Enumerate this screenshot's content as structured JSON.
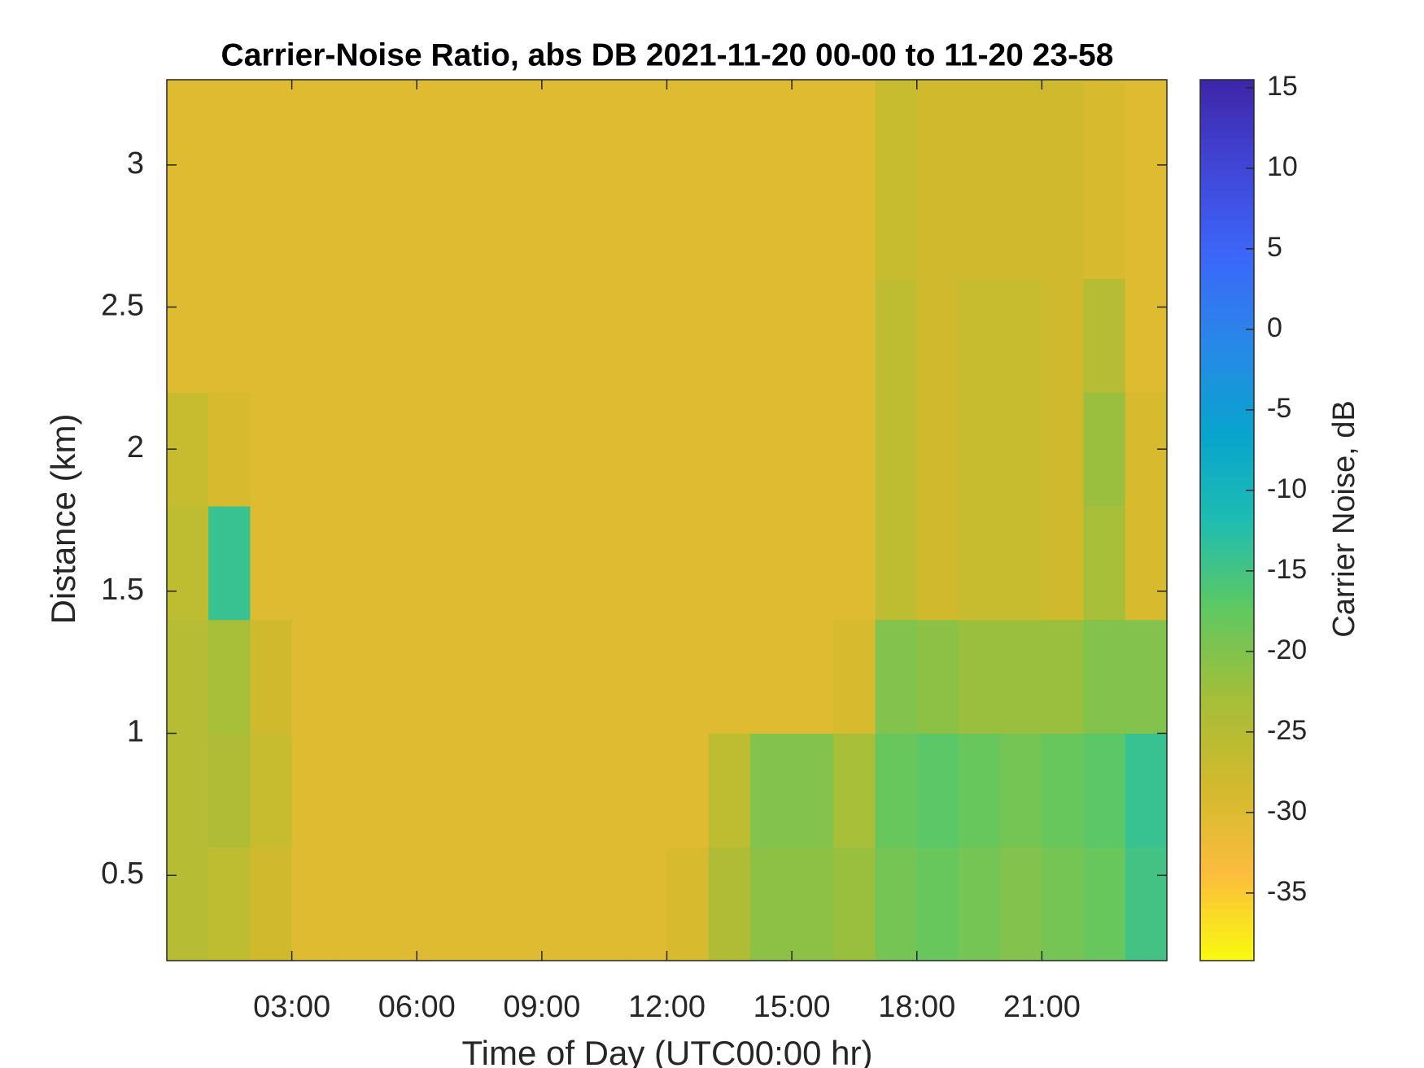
{
  "chart_data": {
    "type": "heatmap",
    "title": "Carrier-Noise Ratio, abs DB 2021-11-20 00-00 to 11-20 23-58",
    "x_label": "Time of Day (UTC00:00 hr)",
    "y_label": "Distance (km)",
    "colorbar_label": "Carrier Noise, dB",
    "xlim": [
      0,
      24
    ],
    "ylim": [
      0.2,
      3.3
    ],
    "clim": [
      -39.2,
      15.5
    ],
    "xticks": [
      {
        "value": 3,
        "label": "03:00"
      },
      {
        "value": 6,
        "label": "06:00"
      },
      {
        "value": 9,
        "label": "09:00"
      },
      {
        "value": 12,
        "label": "12:00"
      },
      {
        "value": 15,
        "label": "15:00"
      },
      {
        "value": 18,
        "label": "18:00"
      },
      {
        "value": 21,
        "label": "21:00"
      }
    ],
    "yticks": [
      0.5,
      1,
      1.5,
      2,
      2.5,
      3
    ],
    "cticks": [
      -35,
      -30,
      -25,
      -20,
      -15,
      -10,
      -5,
      0,
      5,
      10,
      15
    ],
    "colormap": [
      "#f9fb0e",
      "#fbbc3d",
      "#d1ba2c",
      "#a4be38",
      "#5fc861",
      "#1ebcb0",
      "#08a4cf",
      "#2888e8",
      "#3b67f8",
      "#4046d8",
      "#3e26a8"
    ],
    "x": [
      0.5,
      1.5,
      2.5,
      3.5,
      4.5,
      5.5,
      6.5,
      7.5,
      8.5,
      9.5,
      10.5,
      11.5,
      12.5,
      13.5,
      14.5,
      15.5,
      16.5,
      17.5,
      18.5,
      19.5,
      20.5,
      21.5,
      22.5,
      23.5
    ],
    "y": [
      0.4,
      0.8,
      1.2,
      1.6,
      2.0,
      2.4,
      2.8,
      3.2
    ],
    "z": [
      [
        -25,
        -26,
        -28,
        -30,
        -30,
        -30,
        -30,
        -30,
        -30,
        -30,
        -30,
        -30,
        -29,
        -24,
        -21,
        -21,
        -22,
        -19,
        -18,
        -19,
        -20,
        -19,
        -18,
        -15
      ],
      [
        -25,
        -24,
        -27,
        -30,
        -30,
        -30,
        -30,
        -30,
        -30,
        -30,
        -30,
        -30,
        -30,
        -26,
        -20,
        -20,
        -23,
        -18,
        -17,
        -18,
        -19,
        -18,
        -17,
        -14
      ],
      [
        -25,
        -23,
        -28,
        -30,
        -30,
        -30,
        -30,
        -30,
        -30,
        -30,
        -30,
        -30,
        -30,
        -30,
        -30,
        -30,
        -29,
        -20,
        -21,
        -22,
        -22,
        -22,
        -20,
        -20
      ],
      [
        -26,
        -14,
        -30,
        -30,
        -30,
        -30,
        -30,
        -30,
        -30,
        -30,
        -30,
        -30,
        -30,
        -30,
        -30,
        -30,
        -30,
        -26,
        -28,
        -27,
        -27,
        -28,
        -23,
        -29
      ],
      [
        -27,
        -29,
        -30,
        -30,
        -30,
        -30,
        -30,
        -30,
        -30,
        -30,
        -30,
        -30,
        -30,
        -30,
        -30,
        -30,
        -30,
        -26,
        -28,
        -27,
        -27,
        -28,
        -22,
        -29
      ],
      [
        -30,
        -30,
        -30,
        -30,
        -30,
        -30,
        -30,
        -30,
        -30,
        -30,
        -30,
        -30,
        -30,
        -30,
        -30,
        -30,
        -30,
        -26,
        -28,
        -27,
        -27,
        -28,
        -25,
        -30
      ],
      [
        -30,
        -30,
        -30,
        -30,
        -30,
        -30,
        -30,
        -30,
        -30,
        -30,
        -30,
        -30,
        -30,
        -30,
        -30,
        -30,
        -30,
        -27,
        -28,
        -28,
        -28,
        -28,
        -29,
        -30
      ],
      [
        -30,
        -30,
        -30,
        -30,
        -30,
        -30,
        -30,
        -30,
        -30,
        -30,
        -30,
        -30,
        -30,
        -30,
        -30,
        -30,
        -30,
        -27,
        -28,
        -28,
        -28,
        -28,
        -29,
        -30
      ]
    ]
  }
}
